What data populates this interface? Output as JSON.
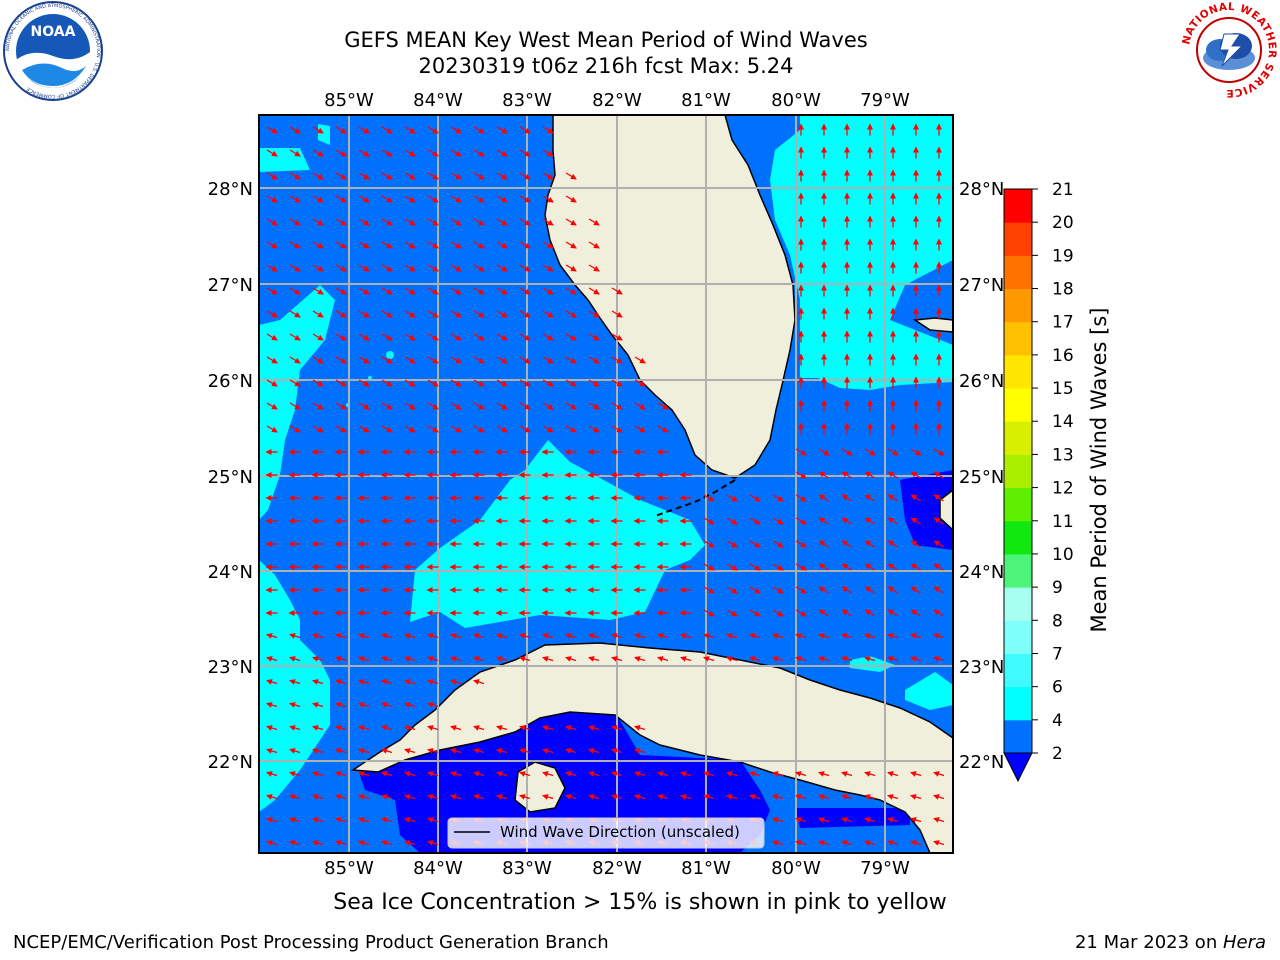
{
  "header": {
    "title_line1": "GEFS MEAN Key West Mean Period of Wind Waves",
    "title_line2": "20230319 t06z 216h fcst    Max: 5.24"
  },
  "logos": {
    "left": {
      "icon": "noaa-logo-icon",
      "text": "NOAA",
      "ring_text": "NATIONAL OCEANIC AND ATMOSPHERIC ADMINISTRATION · U.S. DEPARTMENT OF COMMERCE"
    },
    "right": {
      "icon": "nws-logo-icon",
      "ring_text": "NATIONAL WEATHER SERVICE"
    }
  },
  "map": {
    "lon_labels": [
      "85°W",
      "84°W",
      "83°W",
      "82°W",
      "81°W",
      "80°W",
      "79°W"
    ],
    "lat_labels": [
      "28°N",
      "27°N",
      "26°N",
      "25°N",
      "24°N",
      "23°N",
      "22°N"
    ],
    "lon_range": [
      -86.0,
      -78.25
    ],
    "lat_range": [
      21.07,
      28.75
    ],
    "land_color": "#efefdc",
    "arrow_color": "#ff0000",
    "grid_color": "#b0b0b0",
    "legend_label": "Wind Wave Direction (unscaled)"
  },
  "colorbar": {
    "label": "Mean Period of Wind Waves [s]",
    "ticks": [
      "2",
      "4",
      "6",
      "7",
      "8",
      "9",
      "10",
      "11",
      "12",
      "13",
      "14",
      "15",
      "16",
      "17",
      "18",
      "19",
      "20",
      "21"
    ],
    "colors": [
      "#0070ff",
      "#00ffff",
      "#3ffaff",
      "#7ffffa",
      "#a6fff0",
      "#4cf57a",
      "#10e810",
      "#5ef000",
      "#aaef00",
      "#d8ef00",
      "#ffff00",
      "#ffe600",
      "#ffc000",
      "#ff9900",
      "#ff7200",
      "#ff4000",
      "#ff0000"
    ],
    "under_color": "#0000ff"
  },
  "footer": {
    "note": "Sea Ice Concentration > 15% is shown in pink to yellow",
    "left": "NCEP/EMC/Verification Post Processing Product Generation Branch",
    "right_date": "21 Mar 2023 on ",
    "right_machine": "Hera"
  }
}
